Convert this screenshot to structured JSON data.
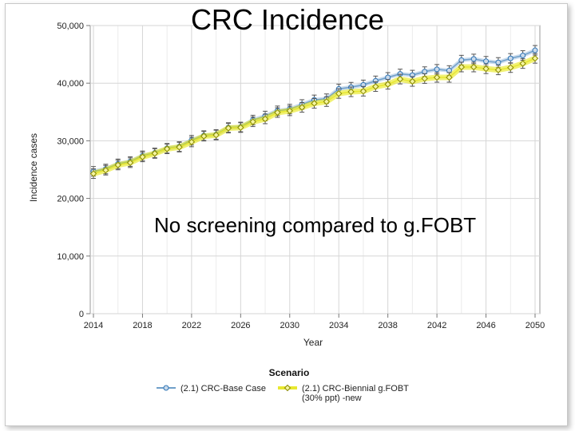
{
  "slide": {
    "title": "CRC Incidence",
    "annotation": "No screening compared to g.FOBT"
  },
  "chart_data": {
    "type": "line",
    "title": "CRC Incidence",
    "xlabel": "Year",
    "ylabel": "Incidence cases",
    "xlim": [
      2014,
      2050
    ],
    "ylim": [
      0,
      50000
    ],
    "x_ticks": [
      "2014",
      "2018",
      "2022",
      "2026",
      "2030",
      "2034",
      "2038",
      "2042",
      "2046",
      "2050"
    ],
    "y_ticks": [
      "0",
      "10,000",
      "20,000",
      "30,000",
      "40,000",
      "50,000"
    ],
    "grid": true,
    "legend_title": "Scenario",
    "legend_position": "bottom",
    "x": [
      2014,
      2015,
      2016,
      2017,
      2018,
      2019,
      2020,
      2021,
      2022,
      2023,
      2024,
      2025,
      2026,
      2027,
      2028,
      2029,
      2030,
      2031,
      2032,
      2033,
      2034,
      2035,
      2036,
      2037,
      2038,
      2039,
      2040,
      2041,
      2042,
      2043,
      2044,
      2045,
      2046,
      2047,
      2048,
      2049,
      2050
    ],
    "series": [
      {
        "name": "(2.1) CRC-Base Case",
        "color": "#2e75b6",
        "marker_fill": "#c9d9ea",
        "line_color": "#6f9fc9",
        "values": [
          24700,
          25100,
          26000,
          26400,
          27400,
          27900,
          28700,
          29000,
          30100,
          30900,
          31100,
          32300,
          32400,
          33600,
          34300,
          35200,
          35500,
          36300,
          37100,
          37300,
          39000,
          39300,
          39700,
          40400,
          41000,
          41600,
          41400,
          42000,
          42400,
          42200,
          44000,
          44200,
          43800,
          43600,
          44300,
          44800,
          45700
        ]
      },
      {
        "name": "(2.1) CRC-Biennial g.FOBT (30% ppt) -new",
        "color": "#e6e600",
        "marker_fill": "#f5f5a0",
        "line_color": "#e8e830",
        "values": [
          24300,
          24900,
          25800,
          26200,
          27200,
          27800,
          28600,
          28900,
          29800,
          30800,
          31000,
          32200,
          32300,
          33300,
          33800,
          34900,
          35200,
          35800,
          36500,
          36800,
          38200,
          38500,
          38600,
          39400,
          39800,
          40700,
          40300,
          40800,
          41000,
          41000,
          42800,
          42800,
          42500,
          42300,
          42700,
          43400,
          44300
        ]
      }
    ]
  }
}
